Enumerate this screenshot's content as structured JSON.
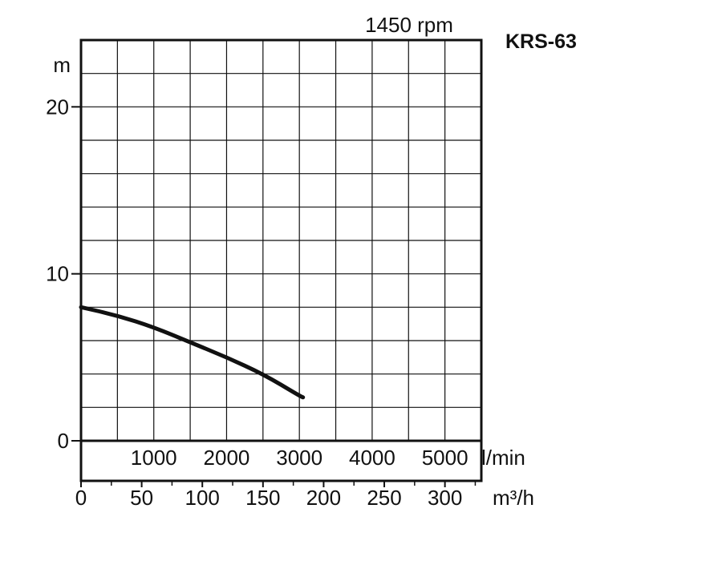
{
  "chart_data": {
    "type": "line",
    "title": "KRS-63",
    "subtitle": "1450 rpm",
    "ylabel": "m",
    "xlabel_primary": "l/min",
    "xlabel_secondary": "m³/h",
    "ylim": [
      0,
      24
    ],
    "y_ticks": [
      {
        "value": 0,
        "label": "0"
      },
      {
        "value": 10,
        "label": "10"
      },
      {
        "value": 20,
        "label": "20"
      }
    ],
    "x_m3h_lim": [
      0,
      330
    ],
    "x_primary_ticks": [
      {
        "value": 1000,
        "label": "1000"
      },
      {
        "value": 2000,
        "label": "2000"
      },
      {
        "value": 3000,
        "label": "3000"
      },
      {
        "value": 4000,
        "label": "4000"
      },
      {
        "value": 5000,
        "label": "5000"
      }
    ],
    "x_secondary_ticks": [
      {
        "value": 0,
        "label": "0"
      },
      {
        "value": 50,
        "label": "50"
      },
      {
        "value": 100,
        "label": "100"
      },
      {
        "value": 150,
        "label": "150"
      },
      {
        "value": 200,
        "label": "200"
      },
      {
        "value": 250,
        "label": "250"
      },
      {
        "value": 300,
        "label": "300"
      }
    ],
    "grid": true,
    "series": [
      {
        "x": [
          0,
          500,
          1000,
          1500,
          2000,
          2500,
          3000,
          3050
        ],
        "y": [
          8.0,
          7.5,
          6.8,
          5.9,
          5.0,
          4.0,
          2.7,
          2.6
        ]
      }
    ]
  }
}
